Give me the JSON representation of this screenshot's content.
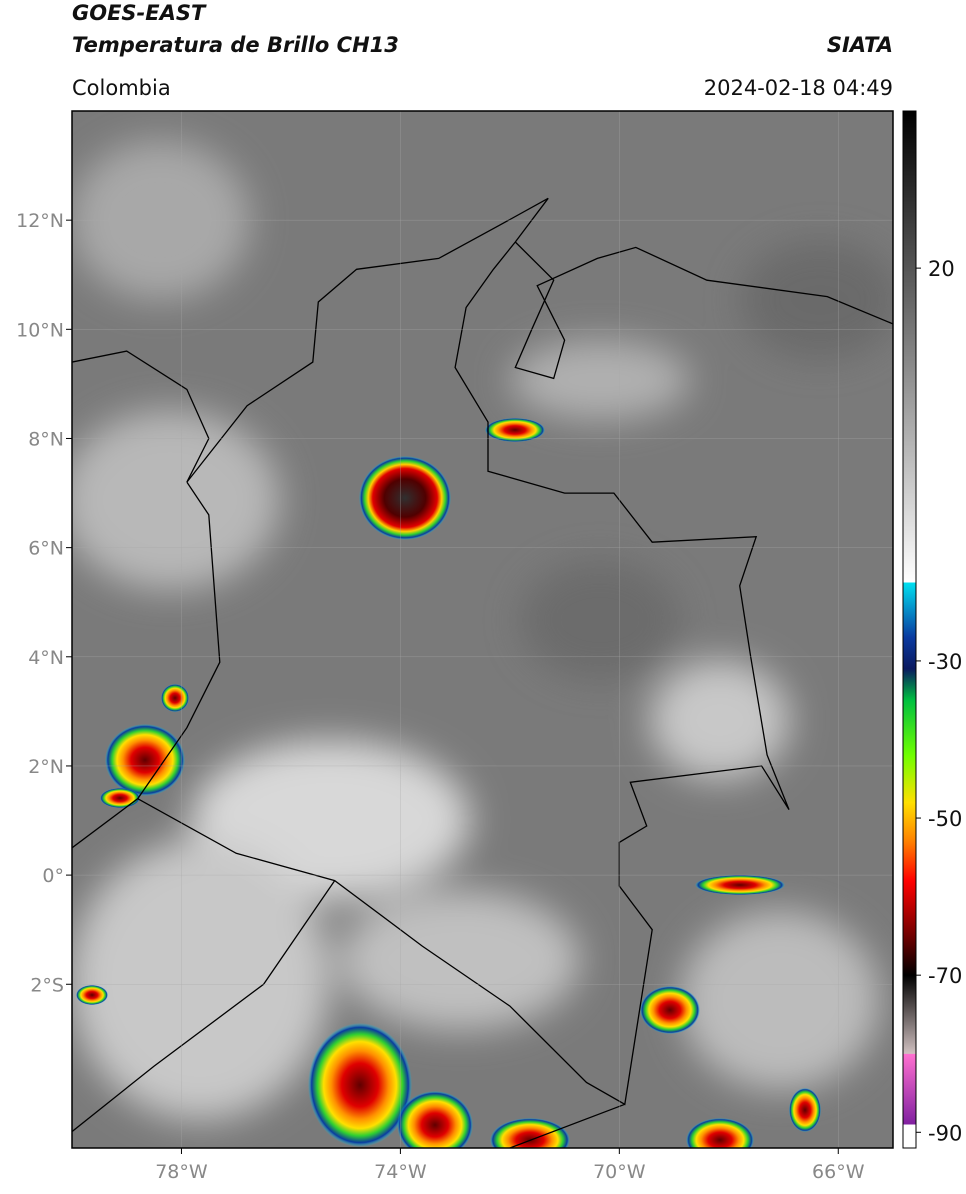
{
  "header": {
    "title": "GOES-EAST",
    "subtitle": "Temperatura de Brillo CH13",
    "source": "SIATA",
    "region": "Colombia",
    "timestamp": "2024-02-18 04:49"
  },
  "chart_data": {
    "type": "map",
    "xlim": [
      -80,
      -65
    ],
    "ylim": [
      -5,
      14
    ],
    "xticks": [
      {
        "value": -78,
        "label": "78°W"
      },
      {
        "value": -74,
        "label": "74°W"
      },
      {
        "value": -70,
        "label": "70°W"
      },
      {
        "value": -66,
        "label": "66°W"
      }
    ],
    "yticks": [
      {
        "value": 12,
        "label": "12°N"
      },
      {
        "value": 10,
        "label": "10°N"
      },
      {
        "value": 8,
        "label": "8°N"
      },
      {
        "value": 6,
        "label": "6°N"
      },
      {
        "value": 4,
        "label": "4°N"
      },
      {
        "value": 2,
        "label": "2°N"
      },
      {
        "value": 0,
        "label": "0°"
      },
      {
        "value": -2,
        "label": "2°S"
      }
    ],
    "grid": true,
    "colorbar": {
      "clim": [
        -92,
        40
      ],
      "ticks": [
        20,
        -30,
        -50,
        -70,
        -90
      ],
      "colormap": [
        {
          "value": 40,
          "color": "#000000"
        },
        {
          "value": -20,
          "color": "#ffffff"
        },
        {
          "value": -20.01,
          "color": "#00e0f0"
        },
        {
          "value": -27,
          "color": "#0a3aa0"
        },
        {
          "value": -31,
          "color": "#0a1a60"
        },
        {
          "value": -35,
          "color": "#00c040"
        },
        {
          "value": -42,
          "color": "#70ff00"
        },
        {
          "value": -48,
          "color": "#ffe000"
        },
        {
          "value": -53,
          "color": "#ff8000"
        },
        {
          "value": -58,
          "color": "#ff0000"
        },
        {
          "value": -65,
          "color": "#700000"
        },
        {
          "value": -70,
          "color": "#000000"
        },
        {
          "value": -80,
          "color": "#d0c0c0"
        },
        {
          "value": -80.01,
          "color": "#ff70d0"
        },
        {
          "value": -89,
          "color": "#8020a0"
        },
        {
          "value": -89.01,
          "color": "#ffffff"
        },
        {
          "value": -92,
          "color": "#ffffff"
        }
      ]
    }
  }
}
